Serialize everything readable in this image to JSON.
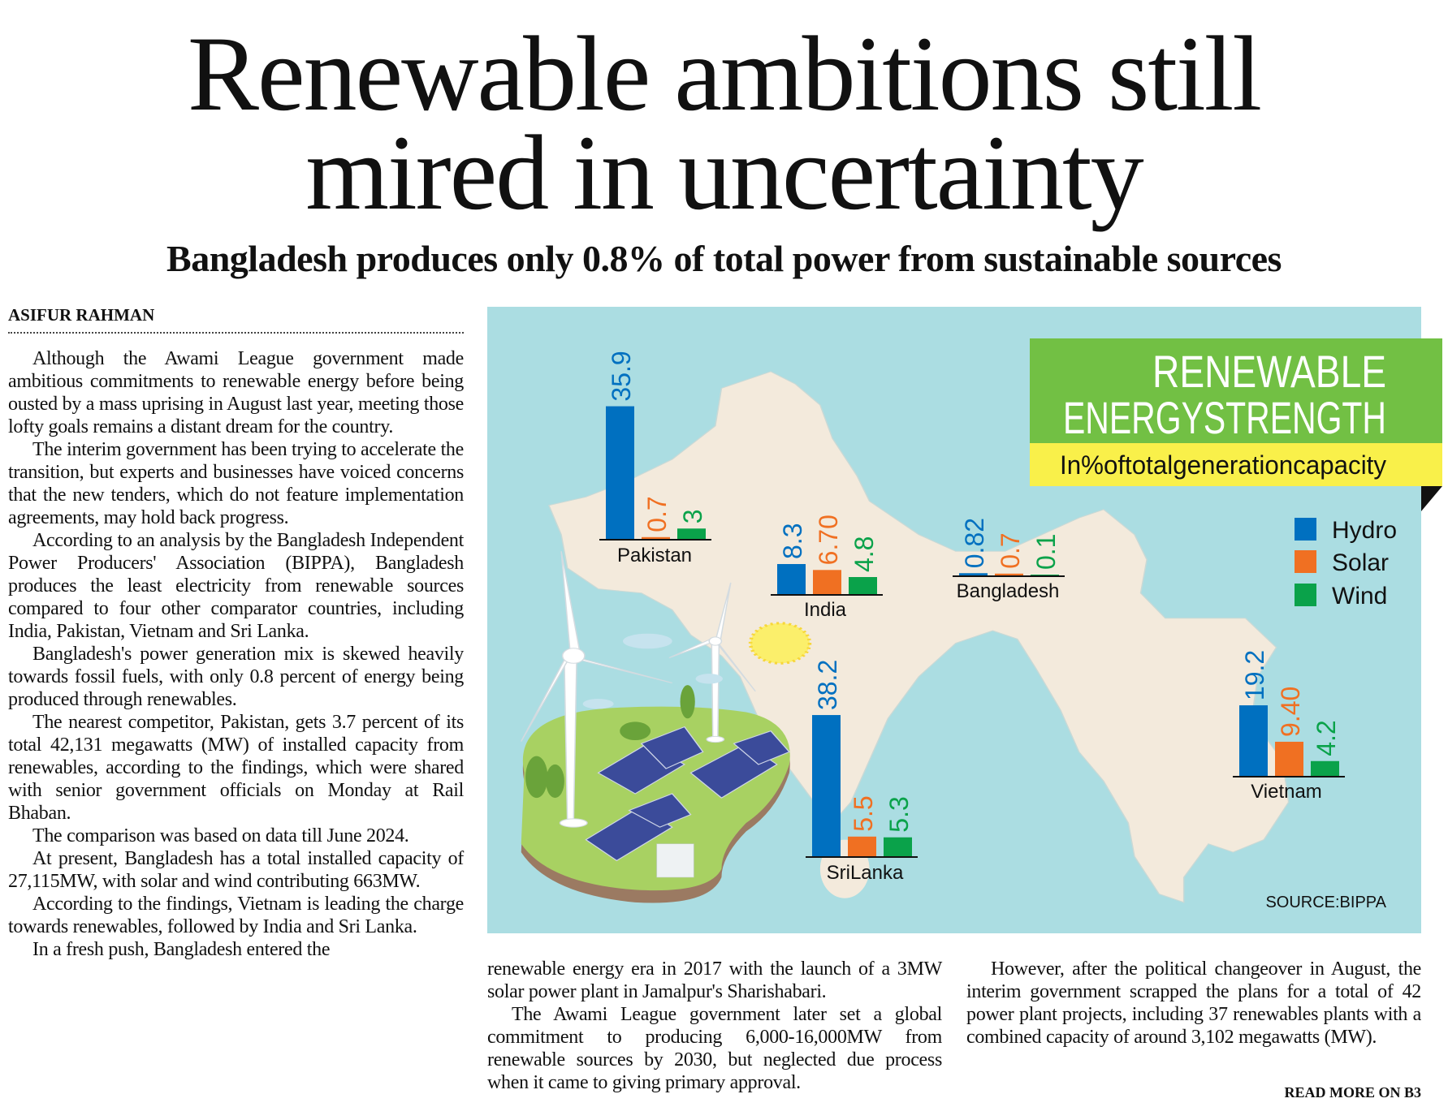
{
  "headline": {
    "line1": "Renewable ambitions still",
    "line2": "mired in uncertainty"
  },
  "subhead": "Bangladesh produces only 0.8% of total power from sustainable sources",
  "byline": "ASIFUR RAHMAN",
  "col1": [
    "Although the Awami League government made ambitious commitments to renewable energy before being ousted by a mass uprising in August last year, meeting those lofty goals remains a distant dream for the country.",
    "The interim government has been trying to accelerate the transition, but experts and businesses have voiced concerns that the new tenders, which do not feature implementation agreements, may hold back progress.",
    "According to an analysis by the Bangladesh Independent Power Producers' Association (BIPPA), Bangladesh produces the least electricity from renewable sources compared to four other comparator countries, including India, Pakistan, Vietnam and Sri Lanka.",
    "Bangladesh's power generation mix is skewed heavily towards fossil fuels, with only 0.8 percent of energy being produced through renewables.",
    "The nearest competitor, Pakistan, gets 3.7 percent of its total 42,131 megawatts (MW) of installed capacity from renewables, according to the findings, which were shared with senior government officials on Monday at Rail Bhaban.",
    "The comparison was based on data till June 2024.",
    "At present, Bangladesh has a total installed capacity of 27,115MW, with solar and wind contributing 663MW.",
    "According to the findings, Vietnam is leading the charge towards renewables, followed by India and Sri Lanka.",
    "In a fresh push, Bangladesh entered the"
  ],
  "col2": [
    "renewable energy era in 2017 with the launch of a 3MW solar power plant in Jamalpur's Sharishabari.",
    "The Awami League government later set a global commitment to producing 6,000-16,000MW from renewable sources by 2030, but neglected due process when it came to giving primary approval."
  ],
  "col3": [
    "However, after the political changeover in August, the interim government scrapped the plans for a total of 42 power plant projects, including 37 renewables plants with a combined capacity of around 3,102 megawatts (MW)."
  ],
  "read_more": "READ MORE ON B3",
  "infographic": {
    "title_line1": "RENEWABLE",
    "title_line2": "ENERGYSTRENGTH",
    "subtitle": "In%oftotalgenerationcapacity",
    "source": "SOURCE:BIPPA",
    "colors": {
      "hydro": "#0070c0",
      "solar": "#f07022",
      "wind": "#0aa24a",
      "panel": "#abdde2",
      "land": "#f3eadc",
      "title_bg": "#72c044",
      "subtitle_bg": "#f9f04a"
    }
  },
  "chart_data": {
    "type": "bar",
    "title": "RENEWABLE ENERGYSTRENGTH",
    "subtitle": "In%oftotalgenerationcapacity",
    "legend": [
      "Hydro",
      "Solar",
      "Wind"
    ],
    "legend_position": "right",
    "categories": [
      "Pakistan",
      "India",
      "Bangladesh",
      "SriLanka",
      "Vietnam"
    ],
    "series": [
      {
        "name": "Hydro",
        "values": [
          35.9,
          8.3,
          0.82,
          38.2,
          19.2
        ],
        "labels": [
          "35.9",
          "8.3",
          "0.82",
          "38.2",
          "19.2"
        ]
      },
      {
        "name": "Solar",
        "values": [
          0.7,
          6.7,
          0.7,
          5.5,
          9.4
        ],
        "labels": [
          "0.7",
          "6.70",
          "0.7",
          "5.5",
          "9.40"
        ]
      },
      {
        "name": "Wind",
        "values": [
          3,
          4.8,
          0.1,
          5.3,
          4.2
        ],
        "labels": [
          "3",
          "4.8",
          "0.1",
          "5.3",
          "4.2"
        ]
      }
    ]
  }
}
